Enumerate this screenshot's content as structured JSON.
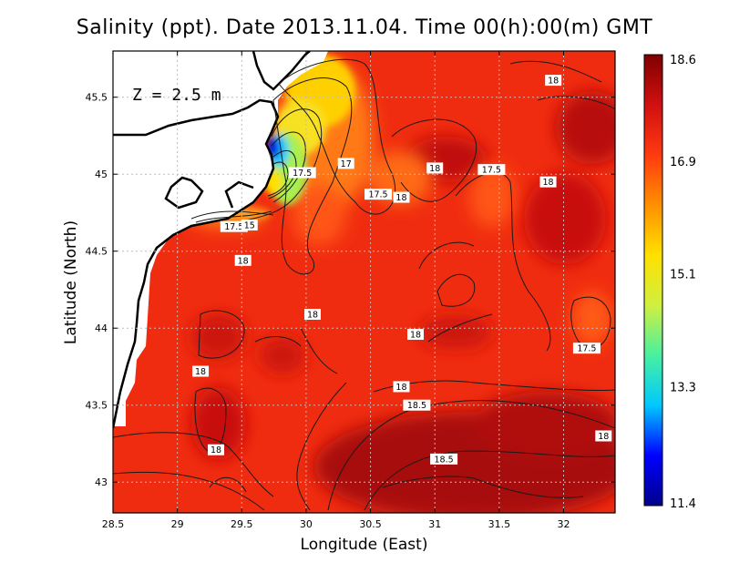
{
  "chart_data": {
    "type": "heatmap",
    "title": "Salinity (ppt). Date 2013.11.04. Time 00(h):00(m) GMT",
    "xlabel": "Longitude (East)",
    "ylabel": "Latitude (North)",
    "annotation": "Z = 2.5 m",
    "xlim": [
      28.5,
      32.4
    ],
    "ylim": [
      42.8,
      45.8
    ],
    "xticks": [
      28.5,
      29,
      29.5,
      30,
      30.5,
      31,
      31.5,
      32
    ],
    "xtick_labels": [
      "28.5",
      "29",
      "29.5",
      "30",
      "30.5",
      "31",
      "31.5",
      "32"
    ],
    "yticks": [
      43,
      43.5,
      44,
      44.5,
      45,
      45.5
    ],
    "ytick_labels": [
      "43",
      "43.5",
      "44",
      "44.5",
      "45",
      "45.5"
    ],
    "grid": true,
    "colorbar": {
      "min": 11.4,
      "max": 18.6,
      "ticks": [
        18.6,
        16.9,
        15.1,
        13.3,
        11.4
      ],
      "tick_labels": [
        "18.6",
        "16.9",
        "15.1",
        "13.3",
        "11.4"
      ],
      "colormap": [
        "#00008b",
        "#0000ff",
        "#00c8ff",
        "#48f0a0",
        "#d0f040",
        "#ffe000",
        "#ff9000",
        "#ff3a10",
        "#d01010",
        "#800000"
      ]
    },
    "contour_labels": [
      {
        "text": "18",
        "lon": 31.92,
        "lat": 45.61
      },
      {
        "text": "17",
        "lon": 30.31,
        "lat": 45.07
      },
      {
        "text": "18",
        "lon": 31.0,
        "lat": 45.04
      },
      {
        "text": "17.5",
        "lon": 31.44,
        "lat": 45.03
      },
      {
        "text": "17.5",
        "lon": 29.97,
        "lat": 45.01
      },
      {
        "text": "18",
        "lon": 31.88,
        "lat": 44.95
      },
      {
        "text": "17.5",
        "lon": 30.56,
        "lat": 44.87
      },
      {
        "text": "18",
        "lon": 30.74,
        "lat": 44.85
      },
      {
        "text": "17.5",
        "lon": 29.44,
        "lat": 44.66
      },
      {
        "text": "15",
        "lon": 29.56,
        "lat": 44.67
      },
      {
        "text": "18",
        "lon": 29.51,
        "lat": 44.44
      },
      {
        "text": "18",
        "lon": 30.05,
        "lat": 44.09
      },
      {
        "text": "18",
        "lon": 30.85,
        "lat": 43.96
      },
      {
        "text": "17.5",
        "lon": 32.18,
        "lat": 43.87
      },
      {
        "text": "18",
        "lon": 29.18,
        "lat": 43.72
      },
      {
        "text": "18",
        "lon": 30.74,
        "lat": 43.62
      },
      {
        "text": "18.5",
        "lon": 30.86,
        "lat": 43.5
      },
      {
        "text": "18",
        "lon": 32.31,
        "lat": 43.3
      },
      {
        "text": "18",
        "lon": 29.3,
        "lat": 43.21
      },
      {
        "text": "18.5",
        "lon": 31.07,
        "lat": 43.15
      }
    ]
  }
}
